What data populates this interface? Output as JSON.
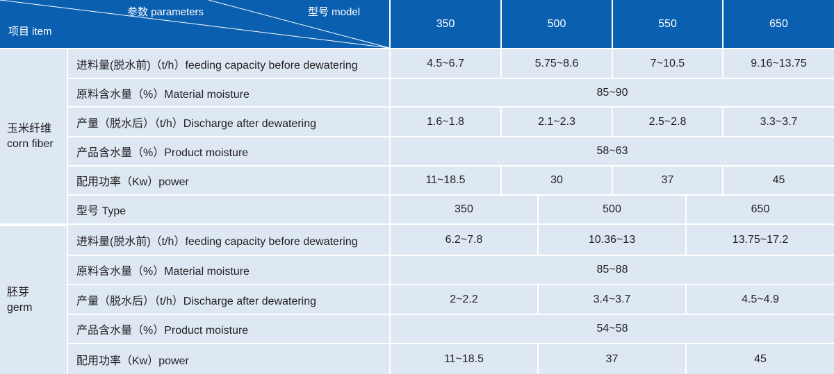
{
  "header": {
    "parameters": "参数 parameters",
    "model": "型号 model",
    "item": "项目 item",
    "models": [
      "350",
      "500",
      "550",
      "650"
    ]
  },
  "sections": [
    {
      "name_cn": "玉米纤维",
      "name_en": "corn fiber",
      "rows": [
        {
          "label": "进料量(脱水前)（t/h）feeding capacity before dewatering",
          "values": [
            "4.5~6.7",
            "5.75~8.6",
            "7~10.5",
            "9.16~13.75"
          ]
        },
        {
          "label": "原料含水量（%）Material moisture",
          "values": [
            "85~90"
          ]
        },
        {
          "label": "产量（脱水后）（t/h）Discharge after dewatering",
          "values": [
            "1.6~1.8",
            "2.1~2.3",
            "2.5~2.8",
            "3.3~3.7"
          ]
        },
        {
          "label": "产品含水量（%）Product moisture",
          "values": [
            "58~63"
          ]
        },
        {
          "label": "配用功率（Kw）power",
          "values": [
            "11~18.5",
            "30",
            "37",
            "45"
          ]
        }
      ]
    },
    {
      "type_row": {
        "label": "型号 Type",
        "values": [
          "350",
          "500",
          "650"
        ]
      }
    },
    {
      "name_cn": "胚芽",
      "name_en": "germ",
      "rows": [
        {
          "label": "进料量(脱水前)（t/h）feeding capacity before dewatering",
          "values": [
            "6.2~7.8",
            "10.36~13",
            "13.75~17.2"
          ]
        },
        {
          "label": "原料含水量（%）Material moisture",
          "values": [
            "85~88"
          ]
        },
        {
          "label": "产量（脱水后）（t/h）Discharge after dewatering",
          "values": [
            "2~2.2",
            "3.4~3.7",
            "4.5~4.9"
          ]
        },
        {
          "label": "产品含水量（%）Product moisture",
          "values": [
            "54~58"
          ]
        },
        {
          "label": "配用功率（Kw）power",
          "values": [
            "11~18.5",
            "37",
            "45"
          ]
        }
      ]
    }
  ]
}
